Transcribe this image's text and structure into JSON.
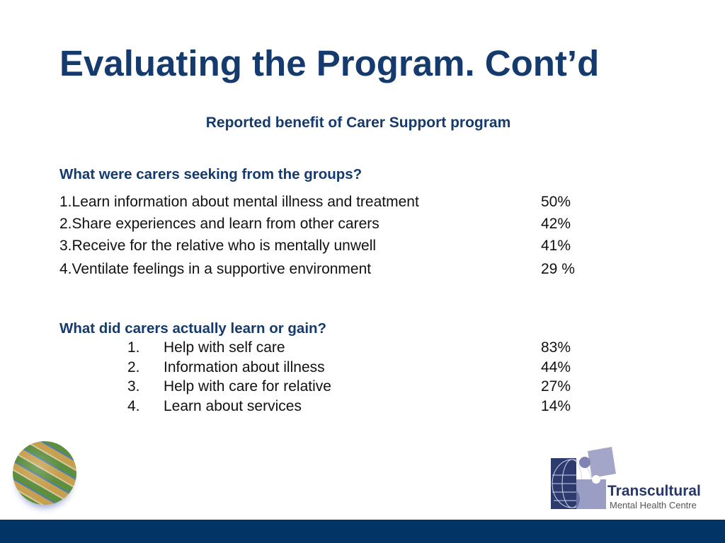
{
  "title": "Evaluating the Program. Cont’d",
  "subtitle": "Reported benefit of Carer Support program",
  "section1": {
    "heading": "What were carers seeking from the groups?",
    "items": [
      {
        "label": "1.Learn information about mental illness and treatment",
        "value": "50%"
      },
      {
        "label": "2.Share experiences and learn from other carers",
        "value": "42%"
      },
      {
        "label": "3.Receive for the relative who is mentally unwell",
        "value": "41%"
      },
      {
        "label": "4.Ventilate feelings in a supportive environment",
        "value": "29 %"
      }
    ]
  },
  "section2": {
    "heading": "What did carers actually learn or gain?",
    "items": [
      {
        "num": "1.",
        "label": "Help with self care",
        "value": "83%"
      },
      {
        "num": "2.",
        "label": "Information about illness",
        "value": "44%"
      },
      {
        "num": "3.",
        "label": "Help with care for relative",
        "value": "27%"
      },
      {
        "num": "4.",
        "label": "Learn about services",
        "value": "14%"
      }
    ]
  },
  "logo": {
    "name": "Transcultural",
    "subname": "Mental Health Centre"
  },
  "colors": {
    "primary": "#153a6e",
    "footer": "#033466"
  }
}
